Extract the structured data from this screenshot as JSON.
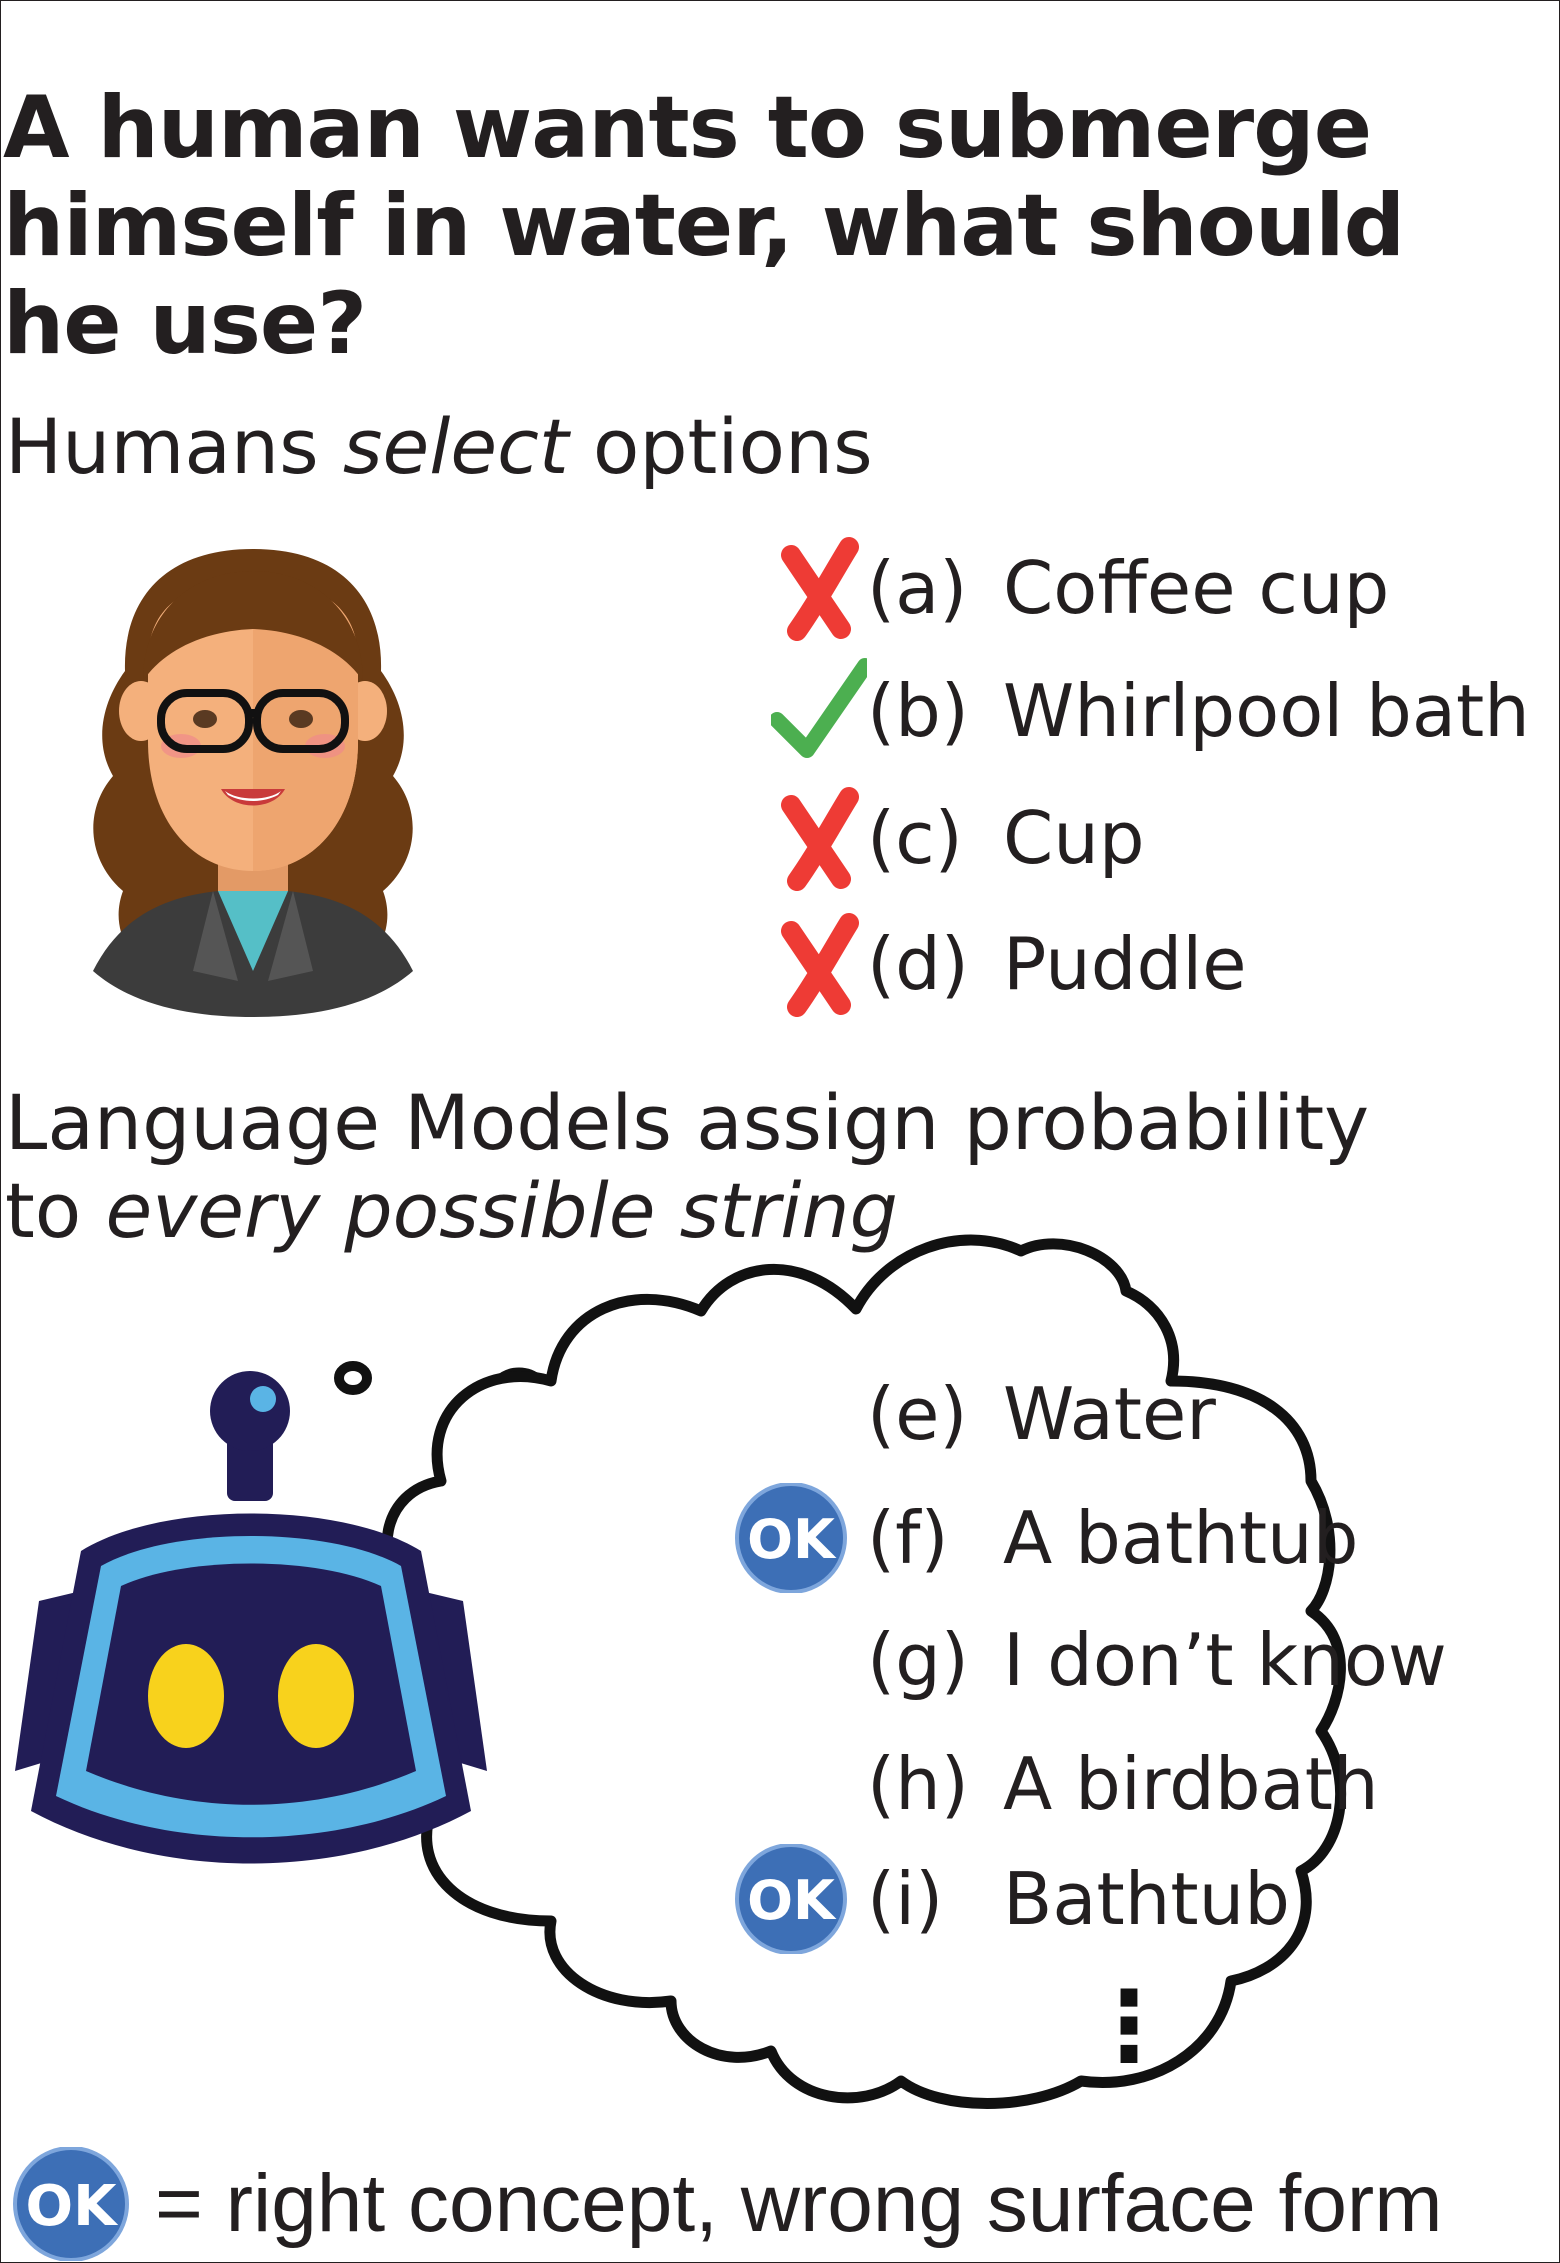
{
  "question": "A human wants to submerge himself in water, what should he use?",
  "humans_heading": {
    "before": "Humans ",
    "emphasis": "select",
    "after": " options"
  },
  "human_options": [
    {
      "letter": "(a)",
      "text": "Coffee cup",
      "mark": "cross-icon"
    },
    {
      "letter": "(b)",
      "text": "Whirlpool bath",
      "mark": "check-icon"
    },
    {
      "letter": "(c)",
      "text": "Cup",
      "mark": "cross-icon"
    },
    {
      "letter": "(d)",
      "text": "Puddle",
      "mark": "cross-icon"
    }
  ],
  "lm_heading": {
    "line1": "Language Models assign probability",
    "line2_before": "to ",
    "line2_emphasis": "every possible string"
  },
  "lm_options": [
    {
      "letter": "(e)",
      "text": "Water",
      "ok": false
    },
    {
      "letter": "(f)",
      "text": "A bathtub",
      "ok": true
    },
    {
      "letter": "(g)",
      "text": "I don’t know",
      "ok": false
    },
    {
      "letter": "(h)",
      "text": "A birdbath",
      "ok": false
    },
    {
      "letter": "(i)",
      "text": "Bathtub",
      "ok": true
    }
  ],
  "ellipsis": "⋮",
  "badge_label": "OK",
  "legend": {
    "equals": "= right concept, wrong surface form"
  },
  "colors": {
    "cross": "#ee3b35",
    "check": "#4caf50",
    "ok_badge": "#3d6fb6",
    "robot_dark": "#221d56",
    "robot_light": "#5ab4e5",
    "robot_eyes": "#f8d21c",
    "hair": "#6b3b13",
    "skin": "#f4b07c"
  }
}
